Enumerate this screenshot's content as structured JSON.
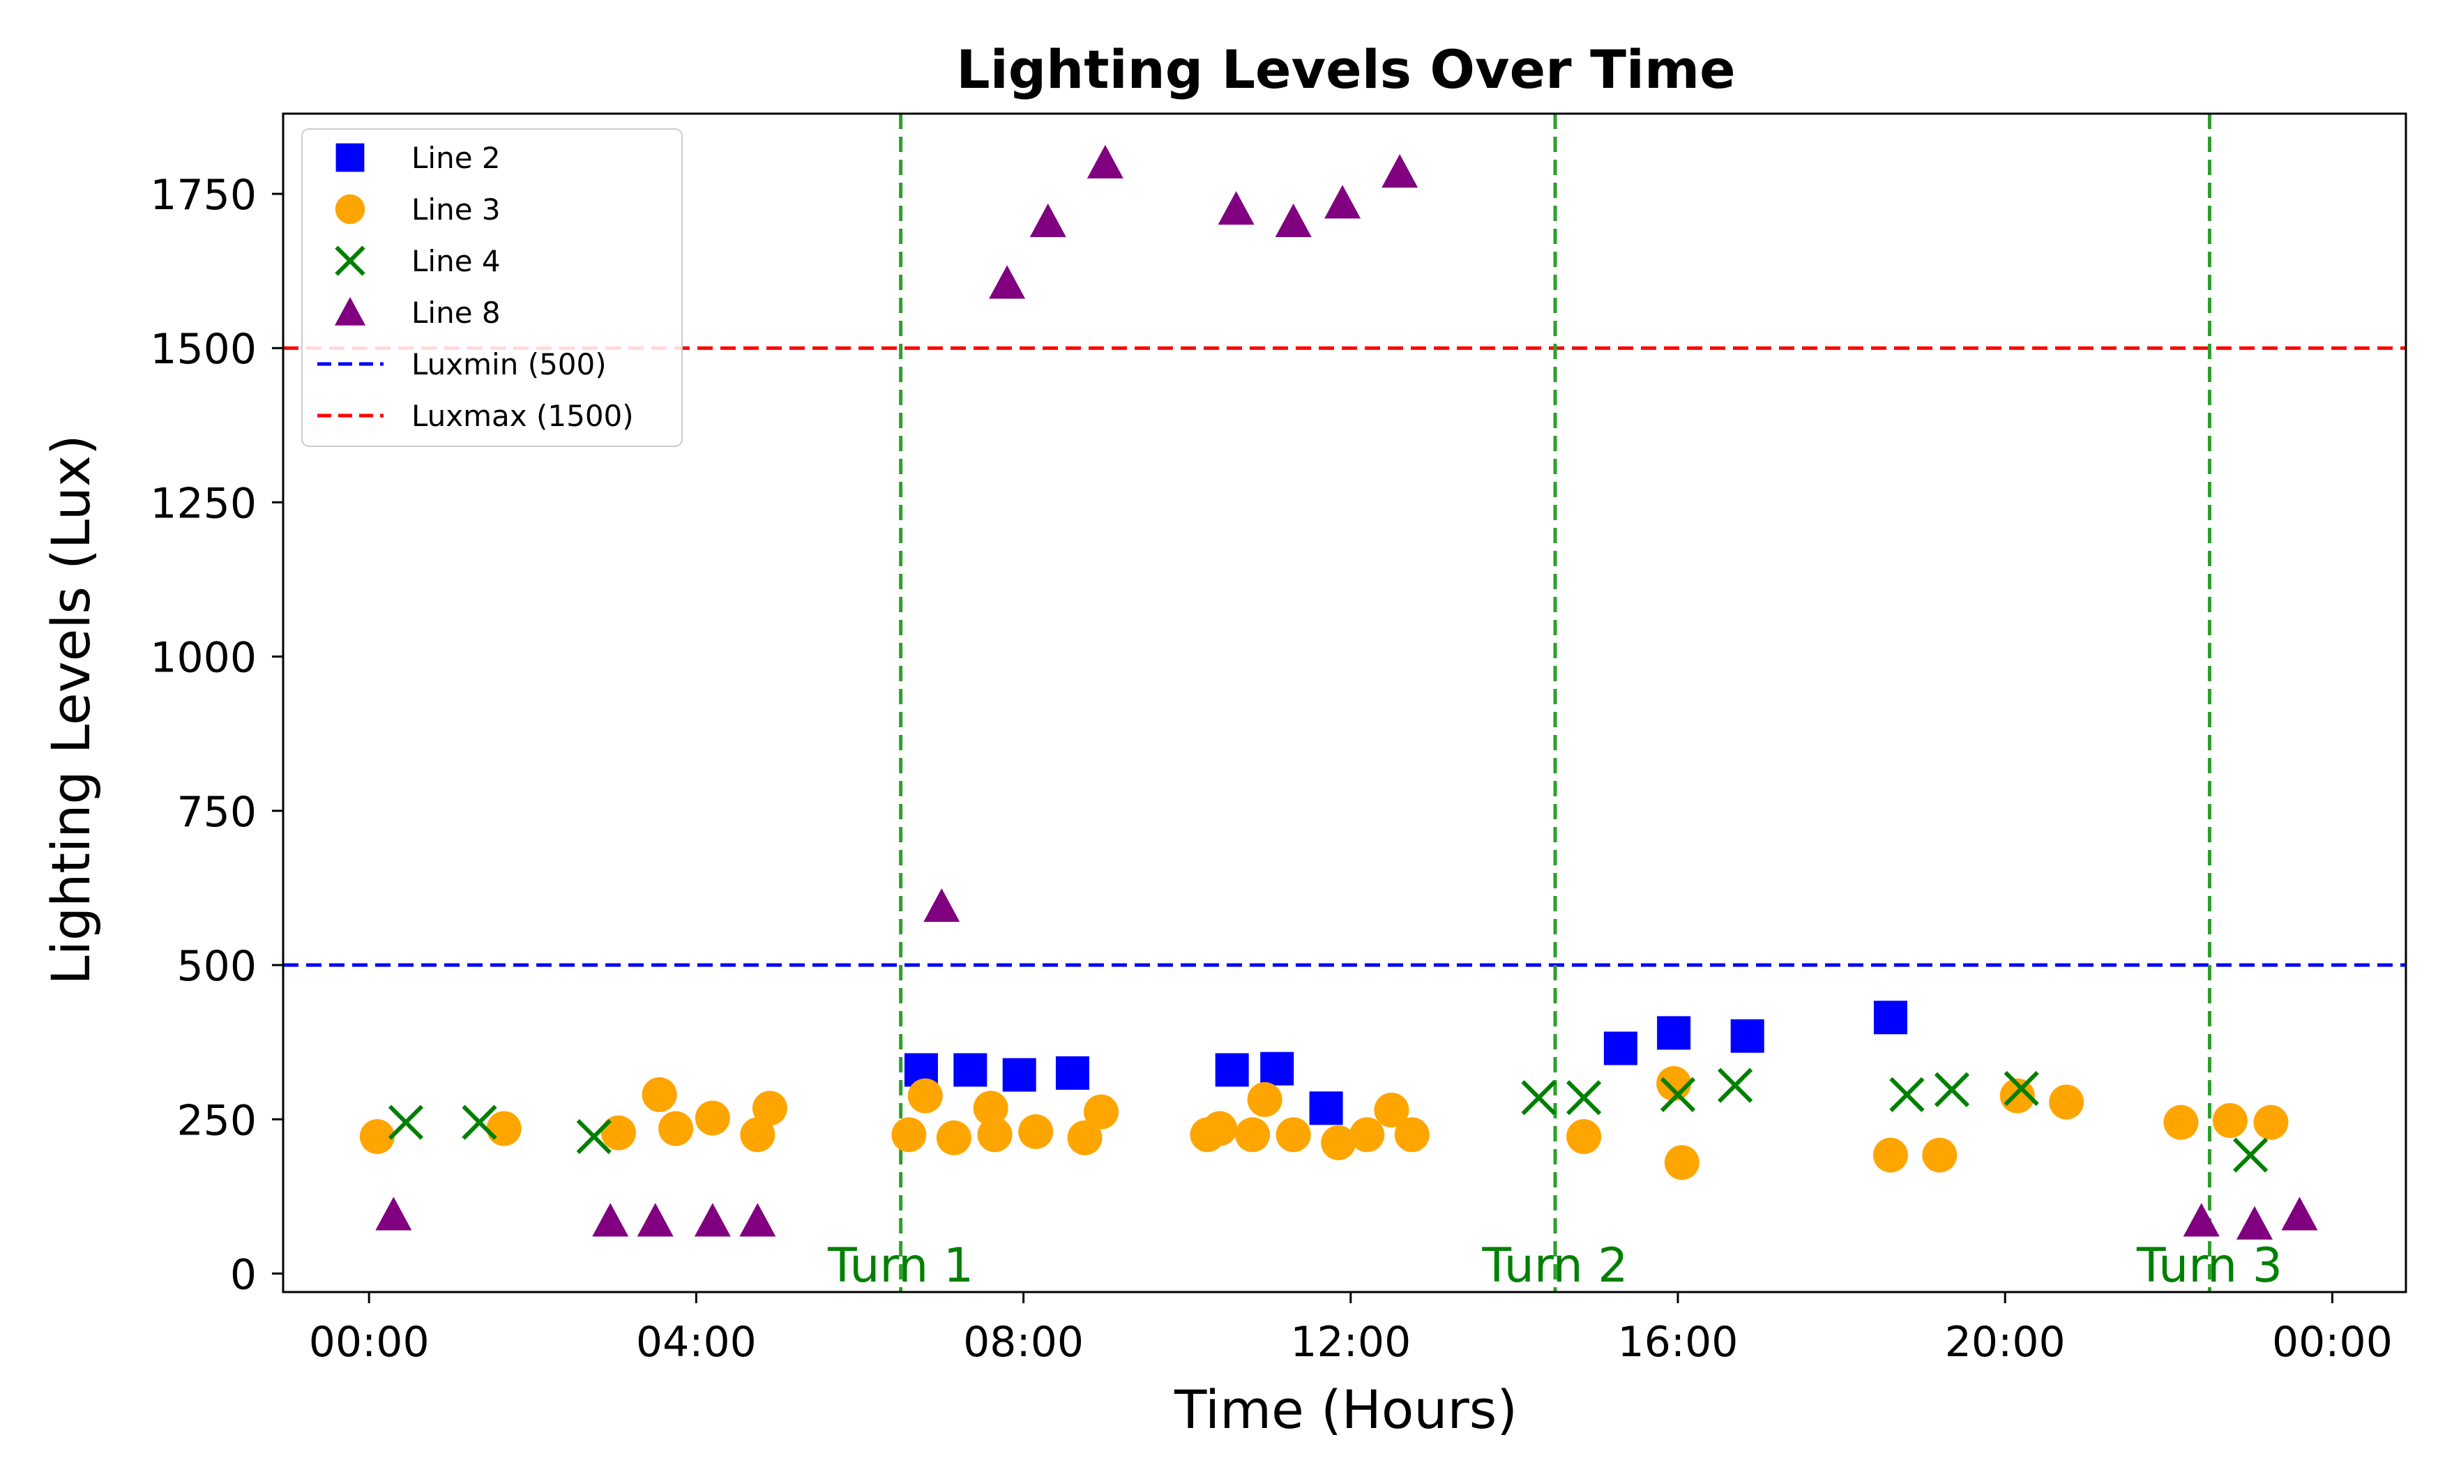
{
  "chart_data": {
    "type": "scatter",
    "title": "Lighting Levels Over Time",
    "xlabel": "Time (Hours)",
    "ylabel": "Lighting Levels (Lux)",
    "xlim": [
      -1.05,
      24.9
    ],
    "ylim": [
      -30,
      1880
    ],
    "x_ticks": [
      0,
      4,
      8,
      12,
      16,
      20,
      24
    ],
    "x_tick_labels": [
      "00:00",
      "04:00",
      "08:00",
      "12:00",
      "16:00",
      "20:00",
      "00:00"
    ],
    "y_ticks": [
      0,
      250,
      500,
      750,
      1000,
      1250,
      1500,
      1750
    ],
    "y_tick_labels": [
      "0",
      "250",
      "500",
      "750",
      "1000",
      "1250",
      "1500",
      "1750"
    ],
    "grid": false,
    "legend_position": "top-left",
    "series": [
      {
        "name": "Line 2",
        "marker": "square",
        "color": "#0000ff",
        "points": [
          [
            6.75,
            330
          ],
          [
            7.35,
            330
          ],
          [
            7.95,
            322
          ],
          [
            8.6,
            325
          ],
          [
            10.55,
            330
          ],
          [
            11.1,
            332
          ],
          [
            11.7,
            268
          ],
          [
            15.3,
            365
          ],
          [
            15.95,
            390
          ],
          [
            16.85,
            385
          ],
          [
            18.6,
            415
          ]
        ]
      },
      {
        "name": "Line 3",
        "marker": "circle",
        "color": "#ffa500",
        "points": [
          [
            0.1,
            222
          ],
          [
            1.65,
            235
          ],
          [
            3.05,
            228
          ],
          [
            3.55,
            290
          ],
          [
            3.75,
            235
          ],
          [
            4.2,
            252
          ],
          [
            4.75,
            225
          ],
          [
            4.9,
            268
          ],
          [
            6.6,
            225
          ],
          [
            6.8,
            288
          ],
          [
            7.15,
            220
          ],
          [
            7.6,
            268
          ],
          [
            7.65,
            225
          ],
          [
            8.15,
            230
          ],
          [
            8.75,
            220
          ],
          [
            8.95,
            262
          ],
          [
            10.25,
            225
          ],
          [
            10.4,
            235
          ],
          [
            10.8,
            225
          ],
          [
            10.95,
            282
          ],
          [
            11.3,
            225
          ],
          [
            11.85,
            212
          ],
          [
            12.2,
            225
          ],
          [
            12.5,
            265
          ],
          [
            12.75,
            225
          ],
          [
            14.85,
            222
          ],
          [
            15.95,
            308
          ],
          [
            16.05,
            180
          ],
          [
            18.6,
            192
          ],
          [
            19.2,
            192
          ],
          [
            20.15,
            288
          ],
          [
            20.75,
            278
          ],
          [
            22.15,
            245
          ],
          [
            22.75,
            248
          ],
          [
            23.25,
            245
          ]
        ]
      },
      {
        "name": "Line 4",
        "marker": "x",
        "color": "#008000",
        "points": [
          [
            0.45,
            245
          ],
          [
            1.35,
            245
          ],
          [
            2.75,
            222
          ],
          [
            14.3,
            285
          ],
          [
            14.85,
            285
          ],
          [
            16.0,
            290
          ],
          [
            16.7,
            305
          ],
          [
            18.8,
            290
          ],
          [
            19.35,
            298
          ],
          [
            20.2,
            300
          ],
          [
            23.0,
            192
          ]
        ]
      },
      {
        "name": "Line 8",
        "marker": "triangle",
        "color": "#800080",
        "points": [
          [
            0.3,
            95
          ],
          [
            2.95,
            85
          ],
          [
            3.5,
            85
          ],
          [
            4.2,
            85
          ],
          [
            4.75,
            85
          ],
          [
            7.0,
            595
          ],
          [
            7.8,
            1605
          ],
          [
            8.3,
            1705
          ],
          [
            9.0,
            1800
          ],
          [
            10.6,
            1725
          ],
          [
            11.3,
            1705
          ],
          [
            11.9,
            1735
          ],
          [
            12.6,
            1785
          ],
          [
            22.4,
            85
          ],
          [
            23.05,
            80
          ],
          [
            23.6,
            95
          ]
        ]
      }
    ],
    "reference_lines": [
      {
        "name": "Luxmin (500)",
        "orientation": "horizontal",
        "value": 500,
        "color": "#0000ff",
        "style": "dashed"
      },
      {
        "name": "Luxmax (1500)",
        "orientation": "horizontal",
        "value": 1500,
        "color": "#ff0000",
        "style": "dashed"
      }
    ],
    "shift_lines": [
      {
        "label": "Turn 1",
        "x": 6.5
      },
      {
        "label": "Turn 2",
        "x": 14.5
      },
      {
        "label": "Turn 3",
        "x": 22.5
      }
    ],
    "shift_line_color": "#2ca02c",
    "shift_label_color": "#008000"
  }
}
